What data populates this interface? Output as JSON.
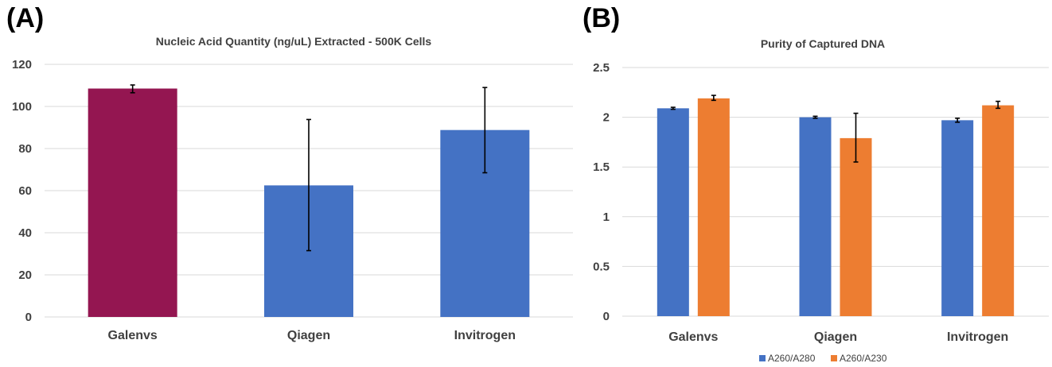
{
  "panels": {
    "a": {
      "label": "(A)"
    },
    "b": {
      "label": "(B)"
    }
  },
  "chart_data": [
    {
      "type": "bar",
      "title": "Nucleic Acid Quantity (ng/uL) Extracted - 500K Cells",
      "xlabel": "",
      "ylabel": "",
      "categories": [
        "Galenvs",
        "Qiagen",
        "Invitrogen"
      ],
      "ylim": [
        0,
        120
      ],
      "yticks": [
        "0",
        "20",
        "40",
        "60",
        "80",
        "100",
        "120"
      ],
      "series": [
        {
          "values": [
            108.5,
            62.5,
            88.8
          ],
          "errors": [
            [
              106.5,
              110.2
            ],
            [
              31.5,
              93.8
            ],
            [
              68.5,
              109.0
            ]
          ],
          "colors": [
            "#941651",
            "#4472c4",
            "#4472c4"
          ]
        }
      ],
      "grid": true,
      "legend": "none"
    },
    {
      "type": "bar",
      "title": "Purity of Captured DNA",
      "xlabel": "",
      "ylabel": "",
      "categories": [
        "Galenvs",
        "Qiagen",
        "Invitrogen"
      ],
      "ylim": [
        0,
        2.5
      ],
      "yticks": [
        "0",
        "0.5",
        "1",
        "1.5",
        "2",
        "2.5"
      ],
      "series": [
        {
          "name": "A260/A280",
          "color": "#4472c4",
          "values": [
            2.09,
            2.0,
            1.97
          ],
          "errors": [
            [
              2.08,
              2.1
            ],
            [
              1.99,
              2.01
            ],
            [
              1.95,
              1.99
            ]
          ]
        },
        {
          "name": "A260/A230",
          "color": "#ed7d31",
          "values": [
            2.19,
            1.79,
            2.12
          ],
          "errors": [
            [
              2.17,
              2.22
            ],
            [
              1.55,
              2.04
            ],
            [
              2.09,
              2.16
            ]
          ]
        }
      ],
      "grid": true,
      "legend": "bottom-center"
    }
  ]
}
